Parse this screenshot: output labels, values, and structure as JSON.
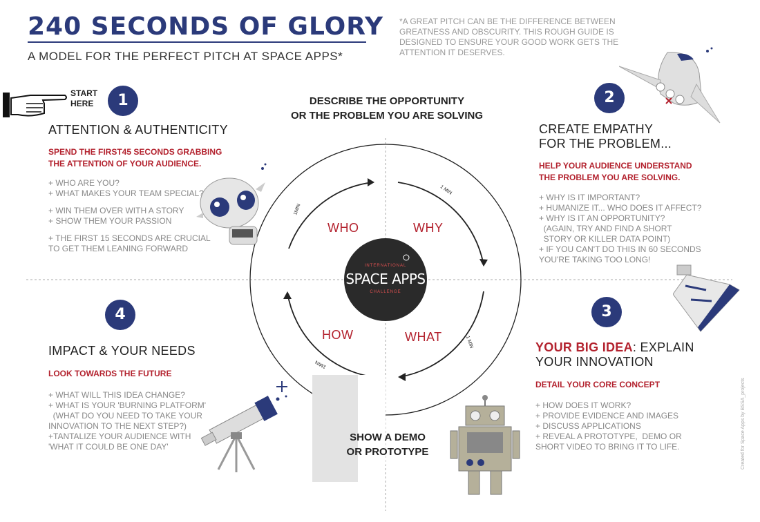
{
  "header": {
    "title": "240 SECONDS OF GLORY",
    "subtitle": "A MODEL FOR THE PERFECT PITCH AT SPACE APPS*",
    "note": "*A GREAT PITCH CAN BE THE DIFFERENCE BETWEEN GREATNESS AND OBSCURITY. THIS ROUGH GUIDE IS DESIGNED TO ENSURE YOUR GOOD WORK GETS THE ATTENTION IT DESERVES."
  },
  "start": {
    "line1": "START",
    "line2": "HERE"
  },
  "center": {
    "top_line1": "DESCRIBE THE OPPORTUNITY",
    "top_line2": "OR THE PROBLEM YOU ARE SOLVING",
    "bottom_line1": "SHOW A DEMO",
    "bottom_line2": "OR PROTOTYPE",
    "logo_top": "INTERNATIONAL",
    "logo_main": "SPACE APPS",
    "logo_bottom": "CHALLENGE"
  },
  "ring": {
    "who": "WHO",
    "why": "WHY",
    "how": "HOW",
    "what": "WHAT",
    "min_label": "1 MIN",
    "min_label_short": "1MIN"
  },
  "sections": {
    "s1": {
      "num": "1",
      "title": "ATTENTION & AUTHENTICITY",
      "red1": "SPEND THE FIRST45 SECONDS GRABBING",
      "red2": "THE ATTENTION OF YOUR AUDIENCE.",
      "items": [
        "+ WHO ARE YOU?",
        "+ WHAT MAKES YOUR TEAM SPECIAL?",
        "+ WIN THEM OVER WITH A STORY",
        "+ SHOW THEM YOUR PASSION",
        "+ THE FIRST 15 SECONDS ARE CRUCIAL",
        "TO GET THEM LEANING FORWARD"
      ]
    },
    "s2": {
      "num": "2",
      "title1": "CREATE EMPATHY",
      "title2": "FOR THE PROBLEM...",
      "red1": "HELP YOUR AUDIENCE UNDERSTAND",
      "red2": "THE PROBLEM YOU ARE SOLVING.",
      "items": [
        "+ WHY IS IT IMPORTANT?",
        "+ HUMANIZE IT... WHO DOES IT AFFECT?",
        "+ WHY IS IT AN OPPORTUNITY?",
        "  (AGAIN, TRY AND FIND A SHORT",
        "  STORY OR KILLER DATA POINT)",
        "+ IF YOU CAN'T DO THIS IN 60 SECONDS",
        "YOU'RE TAKING TOO LONG!"
      ]
    },
    "s3": {
      "num": "3",
      "title_red": "YOUR BIG IDEA",
      "title_rest": ": EXPLAIN",
      "title2": "YOUR INNOVATION",
      "red1": "DETAIL YOUR CORE CONCEPT",
      "items": [
        "+ HOW DOES IT WORK?",
        "+ PROVIDE EVIDENCE AND IMAGES",
        "+ DISCUSS APPLICATIONS",
        "+ REVEAL A PROTOTYPE,  DEMO OR",
        "SHORT VIDEO TO BRING IT TO LIFE."
      ]
    },
    "s4": {
      "num": "4",
      "title": "IMPACT & YOUR NEEDS",
      "red1": "LOOK TOWARDS THE FUTURE",
      "items": [
        "+ WHAT WILL THIS IDEA CHANGE?",
        "+ WHAT IS YOUR 'BURNING PLATFORM'",
        "  (WHAT DO YOU NEED TO TAKE YOUR",
        "INNOVATION TO THE NEXT STEP?)",
        "+TANTALIZE YOUR AUDIENCE WITH",
        "'WHAT IT COULD BE ONE DAY'"
      ]
    }
  },
  "credit": "Created for Space Apps by BSSA_projects",
  "colors": {
    "navy": "#2b3a7a",
    "red": "#b3222e",
    "grey": "#888888"
  },
  "icons": [
    "pointing-hand-icon",
    "alien-icon",
    "space-shuttle-icon",
    "capsule-icon",
    "telescope-icon",
    "robot-icon",
    "star-icon"
  ]
}
